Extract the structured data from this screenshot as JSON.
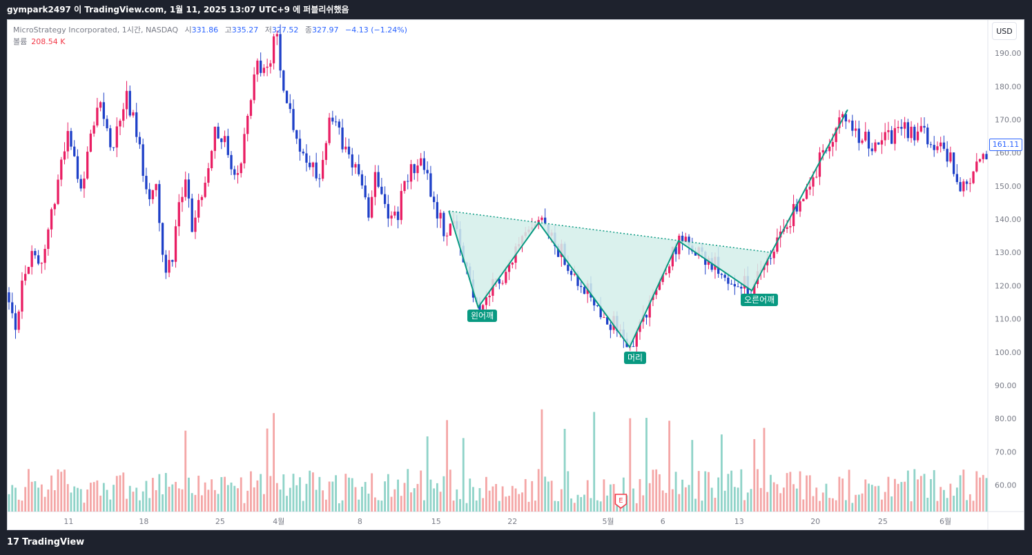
{
  "header": {
    "title": "gympark2497 이 TradingView.com, 1월 11, 2025 13:07 UTC+9 에 퍼블리쉬했음"
  },
  "legend": {
    "symbol": "MicroStrategy Incorporated, 1시간, NASDAQ",
    "open_label": "시",
    "open": "331.86",
    "high_label": "고",
    "high": "335.27",
    "low_label": "저",
    "low": "327.52",
    "close_label": "종",
    "close": "327.97",
    "change": "−4.13 (−1.24%)",
    "volume_label": "볼륨",
    "volume": "208.54 K"
  },
  "currency_button": "USD",
  "last_price": "161.11",
  "pattern_labels": {
    "left_shoulder": "왼어깨",
    "head": "머리",
    "right_shoulder": "오른어깨"
  },
  "earnings_marker": "E",
  "footer": {
    "brand": "TradingView",
    "logo": "17"
  },
  "colors": {
    "up": "#e91e63",
    "down": "#1e40c8",
    "vol_up": "#f4a6a6",
    "vol_down": "#8fd3c8",
    "pattern": "#089981",
    "pattern_fill": "#d4efea"
  },
  "chart_data": {
    "type": "candlestick",
    "title": "",
    "y_axis": {
      "min": 52,
      "max": 200,
      "ticks": [
        "60.00",
        "70.00",
        "80.00",
        "90.00",
        "100.00",
        "110.00",
        "120.00",
        "130.00",
        "140.00",
        "150.00",
        "160.00",
        "170.00",
        "180.00",
        "190.00"
      ]
    },
    "x_axis": {
      "ticks": [
        {
          "label": "11",
          "t": 0.061
        },
        {
          "label": "18",
          "t": 0.138
        },
        {
          "label": "25",
          "t": 0.216
        },
        {
          "label": "4월",
          "t": 0.276
        },
        {
          "label": "8",
          "t": 0.359
        },
        {
          "label": "15",
          "t": 0.437
        },
        {
          "label": "22",
          "t": 0.515
        },
        {
          "label": "5월",
          "t": 0.613
        },
        {
          "label": "6",
          "t": 0.669
        },
        {
          "label": "13",
          "t": 0.747
        },
        {
          "label": "20",
          "t": 0.825
        },
        {
          "label": "25",
          "t": 0.894
        },
        {
          "label": "6월",
          "t": 0.958
        }
      ]
    },
    "price_path": [
      [
        0.0,
        118
      ],
      [
        0.01,
        108
      ],
      [
        0.02,
        125
      ],
      [
        0.035,
        130
      ],
      [
        0.05,
        128
      ],
      [
        0.06,
        145
      ],
      [
        0.07,
        155
      ],
      [
        0.08,
        165
      ],
      [
        0.09,
        158
      ],
      [
        0.1,
        150
      ],
      [
        0.11,
        162
      ],
      [
        0.12,
        175
      ],
      [
        0.13,
        172
      ],
      [
        0.14,
        160
      ],
      [
        0.15,
        168
      ],
      [
        0.16,
        178
      ],
      [
        0.17,
        170
      ],
      [
        0.18,
        158
      ],
      [
        0.19,
        148
      ],
      [
        0.2,
        152
      ],
      [
        0.21,
        128
      ],
      [
        0.22,
        125
      ],
      [
        0.23,
        142
      ],
      [
        0.24,
        150
      ],
      [
        0.25,
        138
      ],
      [
        0.26,
        145
      ],
      [
        0.27,
        155
      ],
      [
        0.28,
        168
      ],
      [
        0.29,
        165
      ],
      [
        0.3,
        160
      ],
      [
        0.31,
        150
      ],
      [
        0.32,
        162
      ],
      [
        0.33,
        178
      ],
      [
        0.34,
        188
      ],
      [
        0.35,
        182
      ],
      [
        0.36,
        192
      ],
      [
        0.365,
        198
      ],
      [
        0.37,
        186
      ],
      [
        0.38,
        175
      ],
      [
        0.39,
        168
      ],
      [
        0.4,
        160
      ],
      [
        0.41,
        158
      ],
      [
        0.42,
        150
      ],
      [
        0.43,
        162
      ],
      [
        0.44,
        170
      ],
      [
        0.45,
        165
      ],
      [
        0.46,
        160
      ],
      [
        0.47,
        158
      ],
      [
        0.48,
        150
      ],
      [
        0.49,
        142
      ],
      [
        0.5,
        155
      ],
      [
        0.51,
        148
      ],
      [
        0.52,
        140
      ],
      [
        0.53,
        142
      ],
      [
        0.54,
        150
      ],
      [
        0.55,
        155
      ],
      [
        0.56,
        158
      ],
      [
        0.57,
        152
      ],
      [
        0.58,
        145
      ],
      [
        0.59,
        140
      ],
      [
        0.6,
        132
      ],
      [
        0.61,
        120
      ],
      [
        0.62,
        113
      ],
      [
        0.63,
        118
      ],
      [
        0.64,
        126
      ],
      [
        0.65,
        122
      ],
      [
        0.66,
        118
      ],
      [
        0.67,
        122
      ],
      [
        0.68,
        130
      ],
      [
        0.69,
        138
      ],
      [
        0.7,
        140
      ],
      [
        0.71,
        132
      ],
      [
        0.72,
        128
      ],
      [
        0.73,
        124
      ],
      [
        0.74,
        125
      ],
      [
        0.75,
        122
      ],
      [
        0.76,
        128
      ],
      [
        0.77,
        118
      ],
      [
        0.78,
        112
      ],
      [
        0.79,
        106
      ],
      [
        0.795,
        102
      ],
      [
        0.8,
        104
      ],
      [
        0.81,
        110
      ],
      [
        0.815,
        114
      ],
      [
        0.82,
        122
      ],
      [
        0.83,
        124
      ],
      [
        0.84,
        132
      ],
      [
        0.85,
        130
      ],
      [
        0.86,
        126
      ],
      [
        0.87,
        125
      ],
      [
        0.88,
        127
      ],
      [
        0.89,
        130
      ],
      [
        0.9,
        124
      ],
      [
        0.91,
        120
      ],
      [
        0.92,
        125
      ],
      [
        0.93,
        124
      ],
      [
        0.94,
        128
      ],
      [
        0.95,
        135
      ],
      [
        0.96,
        142
      ],
      [
        0.97,
        148
      ],
      [
        0.975,
        152
      ],
      [
        0.98,
        160
      ],
      [
        0.99,
        166
      ],
      [
        1.0,
        172
      ]
    ],
    "pattern_points": [
      {
        "name": "start",
        "t": 0.45,
        "price": 142.5
      },
      {
        "name": "left_shoulder",
        "t": 0.48,
        "price": 113.5
      },
      {
        "name": "neck1",
        "t": 0.542,
        "price": 139.0
      },
      {
        "name": "head",
        "t": 0.635,
        "price": 101.5
      },
      {
        "name": "neck2",
        "t": 0.685,
        "price": 133.5
      },
      {
        "name": "right_shoulder",
        "t": 0.76,
        "price": 118.5
      },
      {
        "name": "end",
        "t": 0.78,
        "price": 130.0
      },
      {
        "name": "breakout",
        "t": 0.858,
        "price": 173.0
      }
    ]
  }
}
